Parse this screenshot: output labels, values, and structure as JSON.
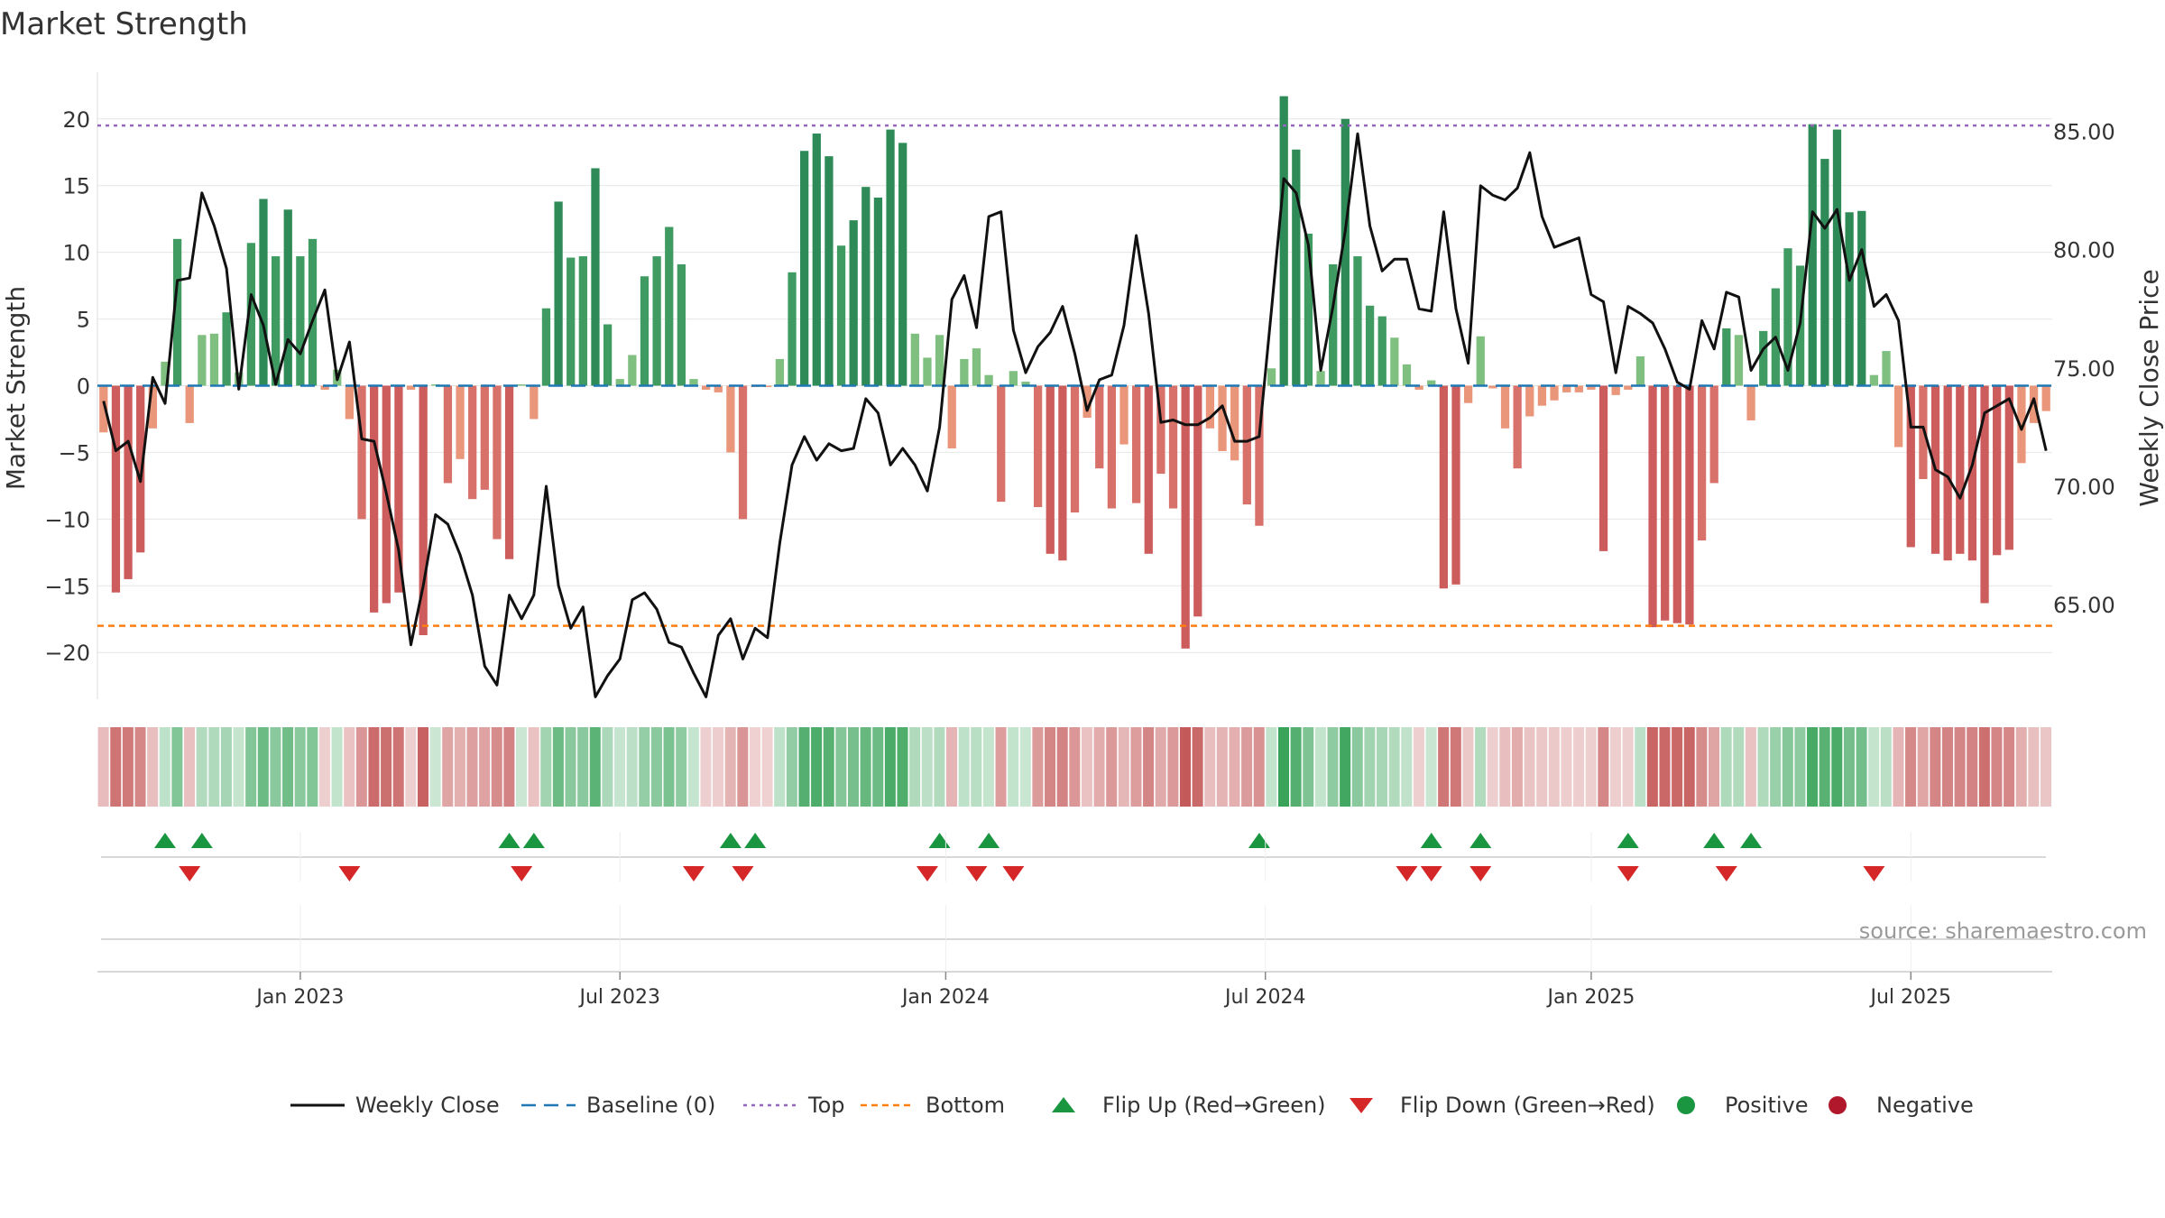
{
  "chart_data": {
    "type": "bar+line",
    "title": "Market Strength",
    "ylabel_left": "Market Strength",
    "ylabel_right": "Weekly Close Price",
    "ylim_left": [
      -23.5,
      23.5
    ],
    "ylim_right": [
      61.0,
      87.5
    ],
    "yticks_left": [
      20,
      15,
      10,
      5,
      0,
      -5,
      -10,
      -15,
      -20
    ],
    "yticks_left_labels": [
      "20",
      "15",
      "10",
      "5",
      "0",
      "−5",
      "−10",
      "−15",
      "−20"
    ],
    "yticks_right": [
      85,
      80,
      75,
      70,
      65
    ],
    "yticks_right_labels": [
      "85.00",
      "80.00",
      "75.00",
      "70.00",
      "65.00"
    ],
    "x_ticks": [
      "Jan 2023",
      "Jul 2023",
      "Jan 2024",
      "Jul 2024",
      "Jan 2025",
      "Jul 2025"
    ],
    "x_tick_weeks": [
      16,
      42,
      68.5,
      94.5,
      121,
      147
    ],
    "top_level": 19.5,
    "bottom_level": -18.0,
    "strength": [
      -3.5,
      -15.5,
      -14.5,
      -12.5,
      -3.2,
      1.8,
      11.0,
      -2.8,
      3.8,
      3.9,
      5.5,
      1.0,
      10.7,
      14.0,
      9.7,
      13.2,
      9.7,
      11.0,
      -0.3,
      1.2,
      -2.5,
      -10.0,
      -17.0,
      -16.3,
      -15.5,
      -0.3,
      -18.7,
      0.1,
      -7.3,
      -5.5,
      -8.5,
      -7.8,
      -11.5,
      -13.0,
      0.1,
      -2.5,
      5.8,
      13.8,
      9.6,
      9.7,
      16.3,
      4.6,
      0.5,
      2.3,
      8.2,
      9.7,
      11.9,
      9.1,
      0.5,
      -0.3,
      -0.5,
      -5.0,
      -10.0,
      -0.1,
      -0.1,
      2.0,
      8.5,
      17.6,
      18.9,
      17.2,
      10.5,
      12.4,
      14.9,
      14.1,
      19.2,
      18.2,
      3.9,
      2.1,
      3.8,
      -4.7,
      2.0,
      2.8,
      0.8,
      -8.7,
      1.1,
      0.3,
      -9.1,
      -12.6,
      -13.1,
      -9.5,
      -2.4,
      -6.2,
      -9.2,
      -4.4,
      -8.8,
      -12.6,
      -6.6,
      -9.2,
      -19.7,
      -17.3,
      -3.2,
      -4.9,
      -5.6,
      -8.9,
      -10.5,
      1.3,
      21.7,
      17.7,
      11.4,
      1.1,
      9.1,
      20.0,
      9.7,
      6.0,
      5.2,
      3.6,
      1.6,
      -0.3,
      0.4,
      -15.2,
      -14.9,
      -1.3,
      3.7,
      -0.2,
      -3.2,
      -6.2,
      -2.3,
      -1.5,
      -1.1,
      -0.5,
      -0.5,
      -0.3,
      -12.4,
      -0.7,
      -0.3,
      2.2,
      -18.1,
      -17.6,
      -17.8,
      -17.9,
      -11.6,
      -7.3,
      4.3,
      3.8,
      -2.6,
      4.1,
      7.3,
      10.3,
      9.0,
      19.6,
      17.0,
      19.2,
      13.0,
      13.1,
      0.8,
      2.6,
      -4.6,
      -12.1,
      -7.0,
      -12.6,
      -13.1,
      -12.6,
      -13.1,
      -16.3,
      -12.7,
      -12.3,
      -5.8,
      -2.8,
      -1.9
    ],
    "weekly_close": [
      73.6,
      71.5,
      71.9,
      70.2,
      74.6,
      73.5,
      78.7,
      78.8,
      82.4,
      81.0,
      79.2,
      74.1,
      78.1,
      76.8,
      74.3,
      76.2,
      75.6,
      77.0,
      78.3,
      74.5,
      76.1,
      72.0,
      71.9,
      69.7,
      67.3,
      63.3,
      65.8,
      68.8,
      68.4,
      67.1,
      65.4,
      62.4,
      61.6,
      65.4,
      64.4,
      65.4,
      70.0,
      65.8,
      64.0,
      64.9,
      61.1,
      62.0,
      62.7,
      65.2,
      65.5,
      64.8,
      63.4,
      63.2,
      62.1,
      61.1,
      63.7,
      64.4,
      62.7,
      64.0,
      63.6,
      67.6,
      70.9,
      72.1,
      71.1,
      71.8,
      71.5,
      71.6,
      73.7,
      73.1,
      70.9,
      71.6,
      70.9,
      69.8,
      72.5,
      77.9,
      78.9,
      76.7,
      81.4,
      81.6,
      76.6,
      74.8,
      75.9,
      76.5,
      77.6,
      75.6,
      73.2,
      74.5,
      74.7,
      76.8,
      80.6,
      77.3,
      72.7,
      72.8,
      72.6,
      72.6,
      72.9,
      73.4,
      71.9,
      71.9,
      72.1,
      77.5,
      83.0,
      82.4,
      80.2,
      74.9,
      77.6,
      80.8,
      84.9,
      81.0,
      79.1,
      79.6,
      79.6,
      77.5,
      77.4,
      81.6,
      77.5,
      75.2,
      82.7,
      82.3,
      82.1,
      82.6,
      84.1,
      81.4,
      80.1,
      80.3,
      80.5,
      78.1,
      77.8,
      74.8,
      77.6,
      77.3,
      76.9,
      75.8,
      74.4,
      74.1,
      77.0,
      75.8,
      78.2,
      78.0,
      74.9,
      75.8,
      76.3,
      74.9,
      76.9,
      81.6,
      80.9,
      81.7,
      78.7,
      80.0,
      77.6,
      78.1,
      77.0,
      72.5,
      72.5,
      70.7,
      70.4,
      69.5,
      70.9,
      73.1,
      73.4,
      73.7,
      72.4,
      73.7,
      71.5
    ],
    "flip_up_weeks": [
      5,
      8,
      33,
      35,
      51,
      53,
      68,
      72,
      94,
      108,
      112,
      124,
      131,
      134
    ],
    "flip_down_weeks": [
      7,
      20,
      34,
      48,
      52,
      67,
      71,
      74,
      106,
      108,
      112,
      124,
      132,
      144
    ],
    "colors": {
      "strong_pos": "#2e8b57",
      "weak_pos": "#7fbf7f",
      "strong_neg": "#cd5c5c",
      "weak_neg": "#e9967a",
      "line": "#111111",
      "baseline": "#1f77b4",
      "top": "#9467bd",
      "bottom": "#ff7f0e",
      "flip_up": "#1a9641",
      "flip_down": "#d62728",
      "grid": "#e6e6e6"
    },
    "legend": [
      {
        "label": "Weekly Close",
        "kind": "line"
      },
      {
        "label": "Baseline (0)",
        "kind": "baseline"
      },
      {
        "label": "Top",
        "kind": "top"
      },
      {
        "label": "Bottom",
        "kind": "bottom"
      },
      {
        "label": "Flip Up (Red→Green)",
        "kind": "up"
      },
      {
        "label": "Flip Down (Green→Red)",
        "kind": "down"
      },
      {
        "label": "Positive",
        "kind": "pos"
      },
      {
        "label": "Negative",
        "kind": "neg"
      }
    ],
    "source": "source: sharemaestro.com"
  }
}
